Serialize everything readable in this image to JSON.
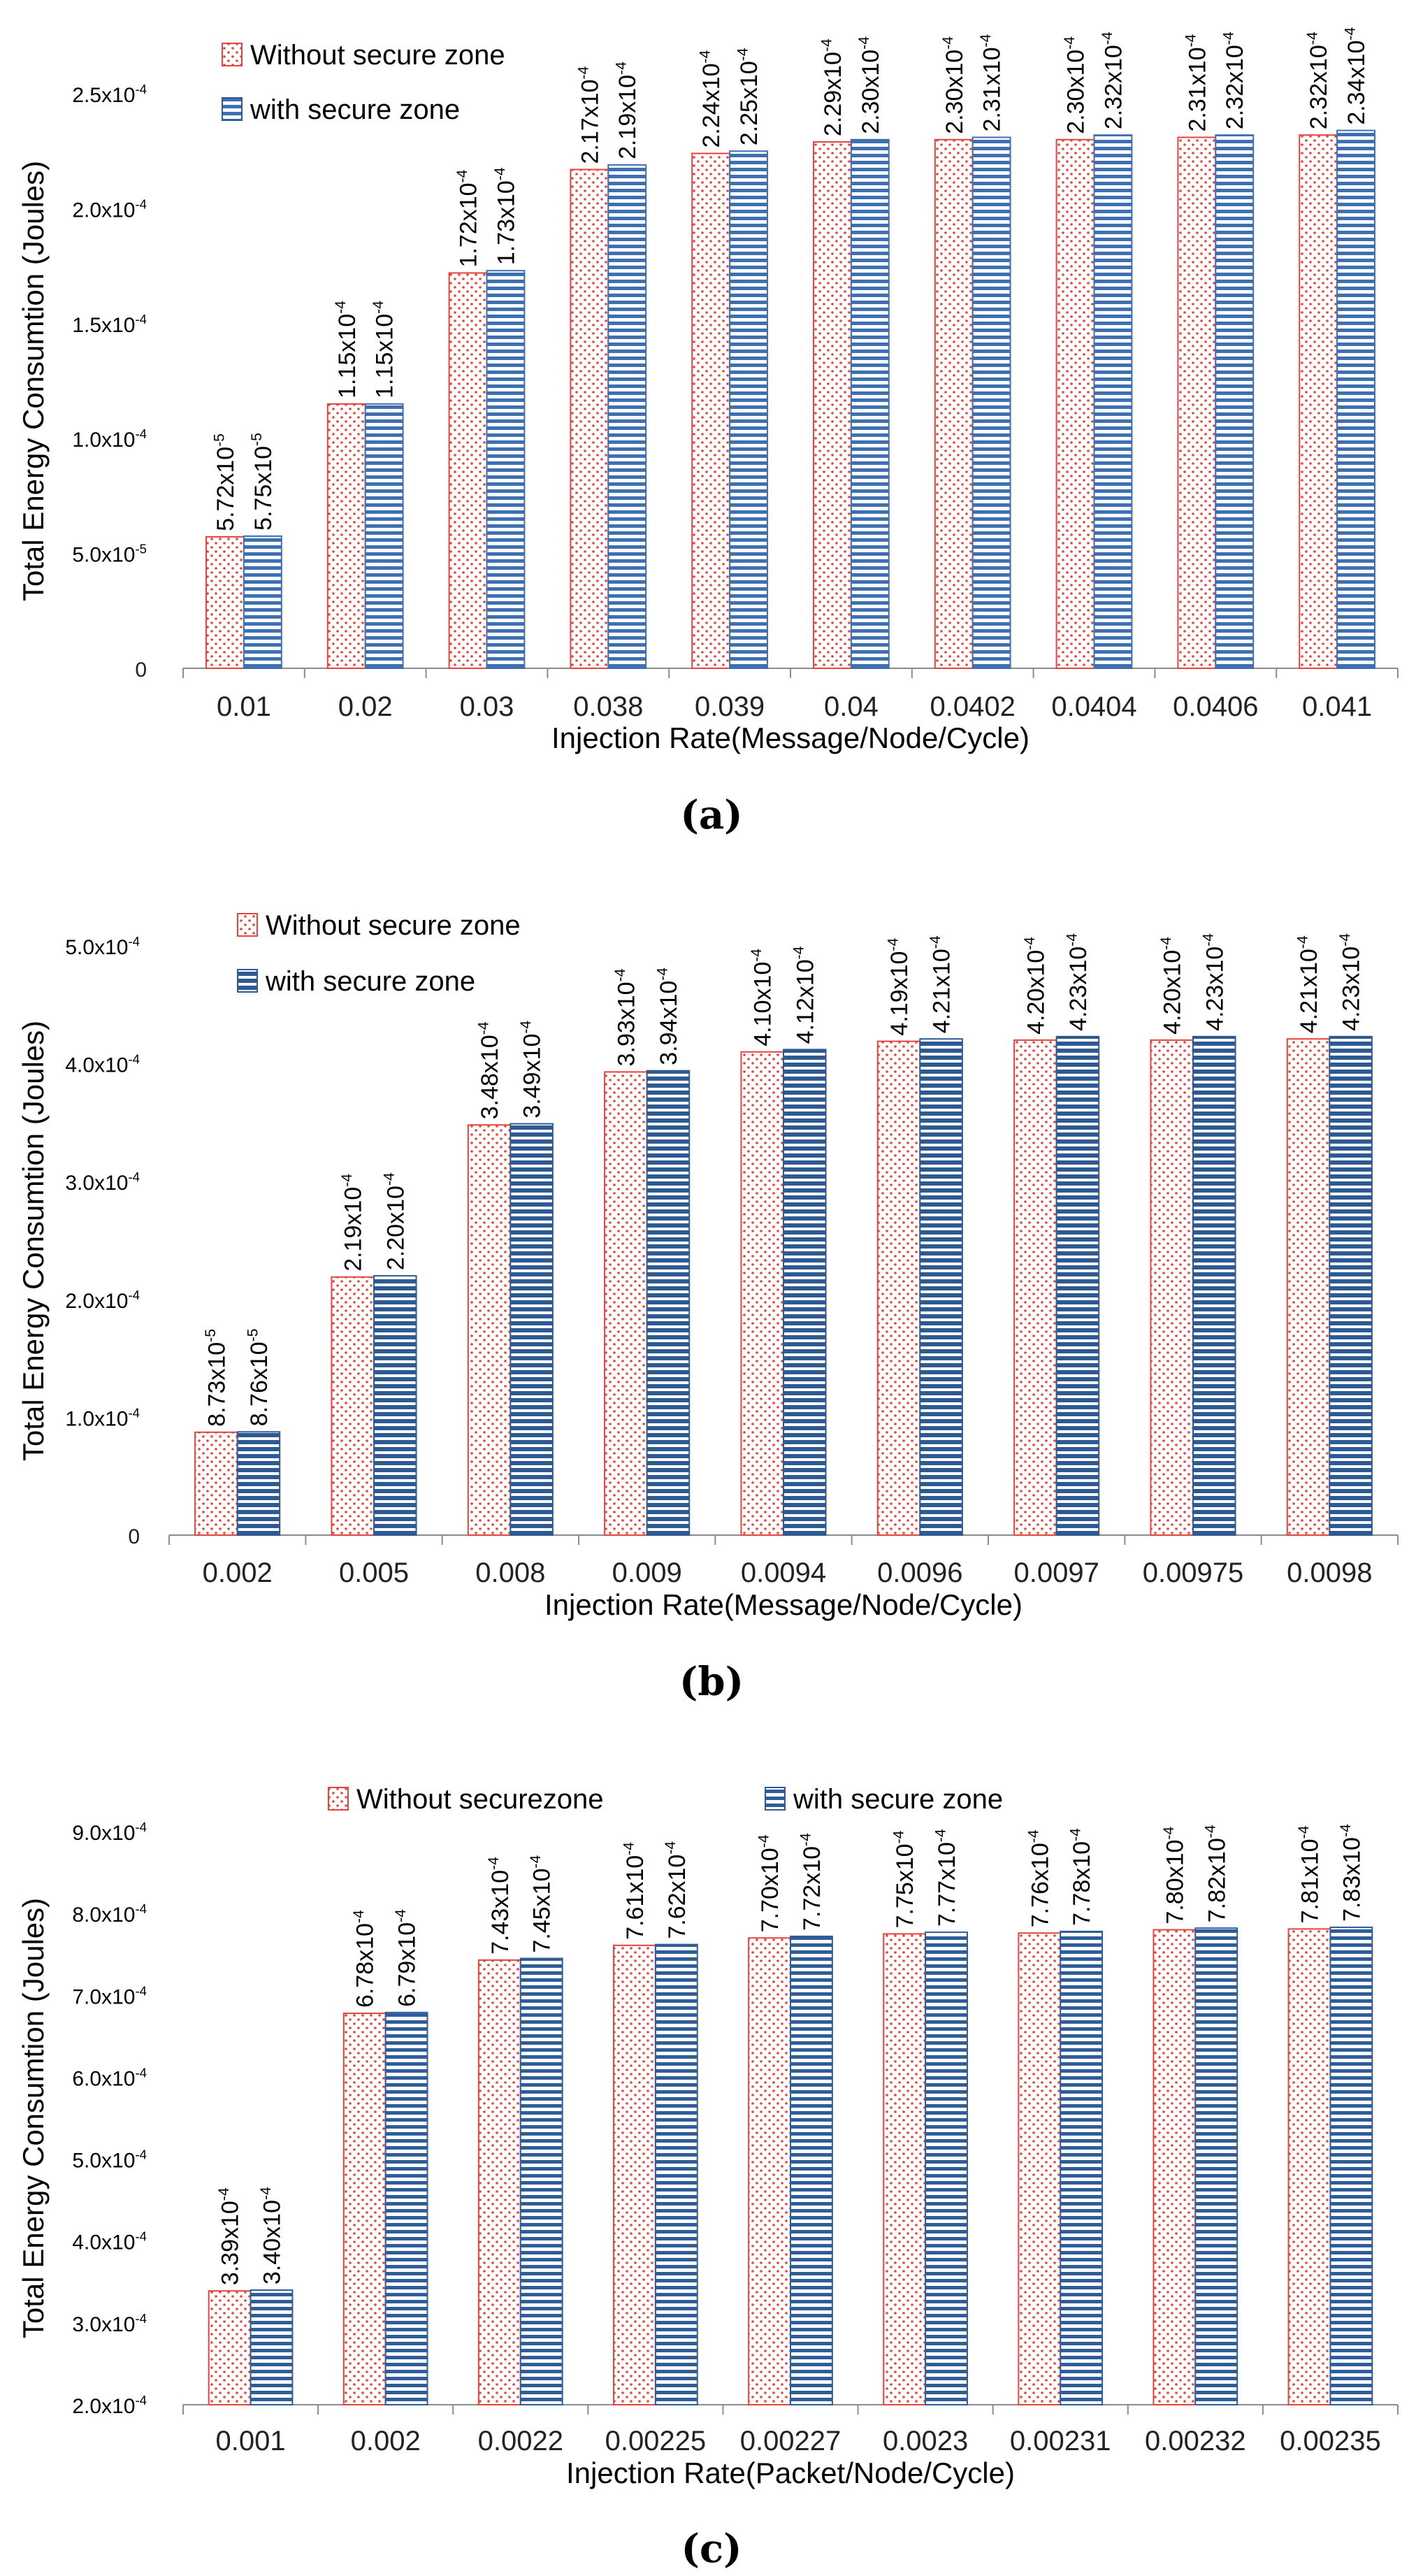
{
  "colors": {
    "without": "#e8423c",
    "with_a": "#3d6fb2",
    "with_b": "#2e5a93",
    "with_c": "#2f5d99"
  },
  "chart_data": [
    {
      "type": "bar",
      "panel": "(a)",
      "caption": "(a)",
      "categories": [
        "0.01",
        "0.02",
        "0.03",
        "0.038",
        "0.039",
        "0.04",
        "0.0402",
        "0.0404",
        "0.0406",
        "0.041"
      ],
      "xlabel": "Injection Rate(Message/Node/Cycle)",
      "ylabel": "Total Energy Consumtion (Joules)",
      "ylim": [
        0,
        0.00025
      ],
      "yticks": [
        0,
        5e-05,
        0.0001,
        0.00015,
        0.0002,
        0.00025
      ],
      "ytick_mant": [
        "0",
        "5.0x10",
        "1.0x10",
        "1.5x10",
        "2.0x10",
        "2.5x10"
      ],
      "ytick_exp": [
        "",
        "-5",
        "-4",
        "-4",
        "-4",
        "-4"
      ],
      "legend": [
        "Without secure zone",
        "with secure zone"
      ],
      "legend_position": "top-left",
      "series": [
        {
          "name": "Without secure zone",
          "values": [
            5.72e-05,
            0.000115,
            0.000172,
            0.000217,
            0.000224,
            0.000229,
            0.00023,
            0.00023,
            0.000231,
            0.000232
          ],
          "label_mant": [
            "5.72x10",
            "1.15x10",
            "1.72x10",
            "2.17x10",
            "2.24x10",
            "2.29x10",
            "2.30x10",
            "2.30x10",
            "2.31x10",
            "2.32x10"
          ],
          "label_exp": [
            "-5",
            "-4",
            "-4",
            "-4",
            "-4",
            "-4",
            "-4",
            "-4",
            "-4",
            "-4"
          ]
        },
        {
          "name": "with secure zone",
          "values": [
            5.75e-05,
            0.000115,
            0.000173,
            0.000219,
            0.000225,
            0.00023,
            0.000231,
            0.000232,
            0.000232,
            0.000234
          ],
          "label_mant": [
            "5.75x10",
            "1.15x10",
            "1.73x10",
            "2.19x10",
            "2.25x10",
            "2.30x10",
            "2.31x10",
            "2.32x10",
            "2.32x10",
            "2.34x10"
          ],
          "label_exp": [
            "-5",
            "-4",
            "-4",
            "-4",
            "-4",
            "-4",
            "-4",
            "-4",
            "-4",
            "-4"
          ]
        }
      ]
    },
    {
      "type": "bar",
      "panel": "(b)",
      "caption": "(b)",
      "categories": [
        "0.002",
        "0.005",
        "0.008",
        "0.009",
        "0.0094",
        "0.0096",
        "0.0097",
        "0.00975",
        "0.0098"
      ],
      "xlabel": "Injection Rate(Message/Node/Cycle)",
      "ylabel": "Total Energy Consumtion (Joules)",
      "ylim": [
        0,
        0.0005
      ],
      "yticks": [
        0,
        0.0001,
        0.0002,
        0.0003,
        0.0004,
        0.0005
      ],
      "ytick_mant": [
        "0",
        "1.0x10",
        "2.0x10",
        "3.0x10",
        "4.0x10",
        "5.0x10"
      ],
      "ytick_exp": [
        "",
        "-4",
        "-4",
        "-4",
        "-4",
        "-4"
      ],
      "legend": [
        "Without secure zone",
        "with secure zone"
      ],
      "legend_position": "top-left",
      "series": [
        {
          "name": "Without secure zone",
          "values": [
            8.73e-05,
            0.000219,
            0.000348,
            0.000393,
            0.00041,
            0.000419,
            0.00042,
            0.00042,
            0.000421
          ],
          "label_mant": [
            "8.73x10",
            "2.19x10",
            "3.48x10",
            "3.93x10",
            "4.10x10",
            "4.19x10",
            "4.20x10",
            "4.20x10",
            "4.21x10"
          ],
          "label_exp": [
            "-5",
            "-4",
            "-4",
            "-4",
            "-4",
            "-4",
            "-4",
            "-4",
            "-4"
          ]
        },
        {
          "name": "with secure zone",
          "values": [
            8.76e-05,
            0.00022,
            0.000349,
            0.000394,
            0.000412,
            0.000421,
            0.000423,
            0.000423,
            0.000423
          ],
          "label_mant": [
            "8.76x10",
            "2.20x10",
            "3.49x10",
            "3.94x10",
            "4.12x10",
            "4.21x10",
            "4.23x10",
            "4.23x10",
            "4.23x10"
          ],
          "label_exp": [
            "-5",
            "-4",
            "-4",
            "-4",
            "-4",
            "-4",
            "-4",
            "-4",
            "-4"
          ]
        }
      ]
    },
    {
      "type": "bar",
      "panel": "(c)",
      "caption": "(c)",
      "categories": [
        "0.001",
        "0.002",
        "0.0022",
        "0.00225",
        "0.00227",
        "0.0023",
        "0.00231",
        "0.00232",
        "0.00235"
      ],
      "xlabel": "Injection Rate(Packet/Node/Cycle)",
      "ylabel": "Total Energy Consumtion (Joules)",
      "ylim": [
        0.0002,
        0.0009
      ],
      "yticks": [
        0.0002,
        0.0003,
        0.0004,
        0.0005,
        0.0006,
        0.0007,
        0.0008,
        0.0009
      ],
      "ytick_mant": [
        "2.0x10",
        "3.0x10",
        "4.0x10",
        "5.0x10",
        "6.0x10",
        "7.0x10",
        "8.0x10",
        "9.0x10"
      ],
      "ytick_exp": [
        "-4",
        "-4",
        "-4",
        "-4",
        "-4",
        "-4",
        "-4",
        "-4"
      ],
      "legend": [
        "Without securezone",
        "with secure zone"
      ],
      "legend_position": "top",
      "series": [
        {
          "name": "Without securezone",
          "values": [
            0.000339,
            0.000678,
            0.000743,
            0.000761,
            0.00077,
            0.000775,
            0.000776,
            0.00078,
            0.000781
          ],
          "label_mant": [
            "3.39x10",
            "6.78x10",
            "7.43x10",
            "7.61x10",
            "7.70x10",
            "7.75x10",
            "7.76x10",
            "7.80x10",
            "7.81x10"
          ],
          "label_exp": [
            "-4",
            "-4",
            "-4",
            "-4",
            "-4",
            "-4",
            "-4",
            "-4",
            "-4"
          ]
        },
        {
          "name": "with secure zone",
          "values": [
            0.00034,
            0.000679,
            0.000745,
            0.000762,
            0.000772,
            0.000777,
            0.000778,
            0.000782,
            0.000783
          ],
          "label_mant": [
            "3.40x10",
            "6.79x10",
            "7.45x10",
            "7.62x10",
            "7.72x10",
            "7.77x10",
            "7.78x10",
            "7.82x10",
            "7.83x10"
          ],
          "label_exp": [
            "-4",
            "-4",
            "-4",
            "-4",
            "-4",
            "-4",
            "-4",
            "-4",
            "-4"
          ]
        }
      ]
    }
  ]
}
